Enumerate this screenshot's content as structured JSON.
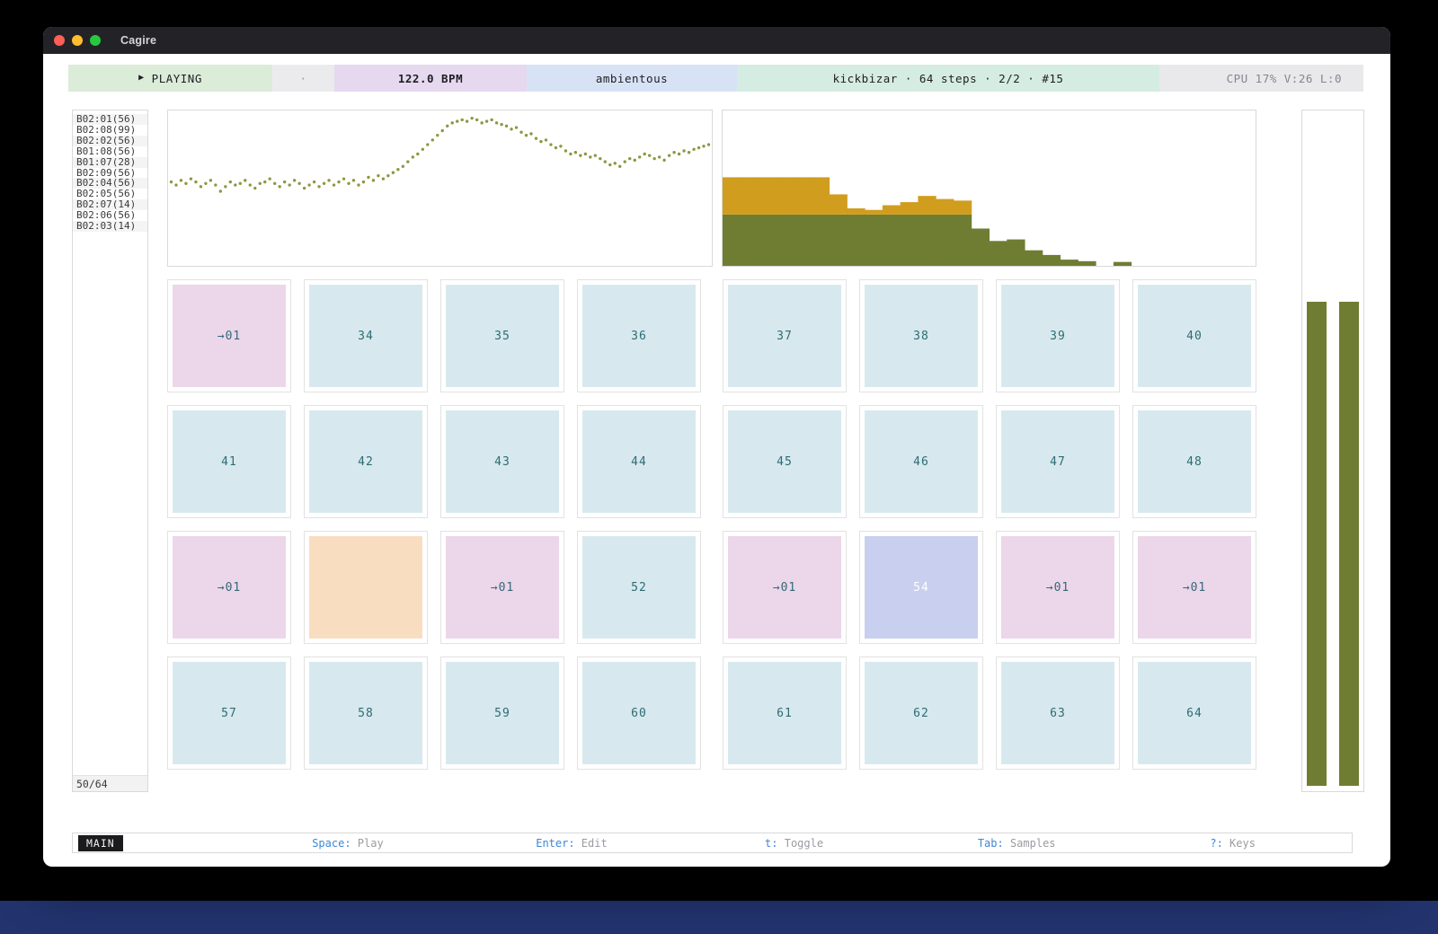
{
  "window": {
    "title": "Cagire"
  },
  "toolbar": {
    "transport_label": "PLAYING",
    "play_icon": "▶",
    "mid_dot": "·",
    "bpm": "122.0 BPM",
    "scene": "ambientous",
    "pattern_info": "kickbizar · 64 steps · 2/2 · #15",
    "stats": "CPU 17%  V:26  L:0"
  },
  "samples": {
    "items": [
      "B02:01(56)",
      "B02:08(99)",
      "B02:02(56)",
      "B01:08(56)",
      "B01:07(28)",
      "B02:09(56)",
      "B02:04(56)",
      "B02:05(56)",
      "B02:07(14)",
      "B02:06(56)",
      "B02:03(14)"
    ],
    "count": "50/64"
  },
  "grid": {
    "cells": [
      {
        "label": "→01",
        "variant": "pink"
      },
      {
        "label": "34",
        "variant": "blue"
      },
      {
        "label": "35",
        "variant": "blue"
      },
      {
        "label": "36",
        "variant": "blue"
      },
      {
        "label": "37",
        "variant": "blue"
      },
      {
        "label": "38",
        "variant": "blue"
      },
      {
        "label": "39",
        "variant": "blue"
      },
      {
        "label": "40",
        "variant": "blue"
      },
      {
        "label": "41",
        "variant": "blue"
      },
      {
        "label": "42",
        "variant": "blue"
      },
      {
        "label": "43",
        "variant": "blue"
      },
      {
        "label": "44",
        "variant": "blue"
      },
      {
        "label": "45",
        "variant": "blue"
      },
      {
        "label": "46",
        "variant": "blue"
      },
      {
        "label": "47",
        "variant": "blue"
      },
      {
        "label": "48",
        "variant": "blue"
      },
      {
        "label": "→01",
        "variant": "pink"
      },
      {
        "label": "",
        "variant": "orange"
      },
      {
        "label": "→01",
        "variant": "pink"
      },
      {
        "label": "52",
        "variant": "blue"
      },
      {
        "label": "→01",
        "variant": "pink"
      },
      {
        "label": "54",
        "variant": "lavender"
      },
      {
        "label": "→01",
        "variant": "pink"
      },
      {
        "label": "→01",
        "variant": "pink"
      },
      {
        "label": "57",
        "variant": "blue"
      },
      {
        "label": "58",
        "variant": "blue"
      },
      {
        "label": "59",
        "variant": "blue"
      },
      {
        "label": "60",
        "variant": "blue"
      },
      {
        "label": "61",
        "variant": "blue"
      },
      {
        "label": "62",
        "variant": "blue"
      },
      {
        "label": "63",
        "variant": "blue"
      },
      {
        "label": "64",
        "variant": "blue"
      }
    ]
  },
  "chart_data": [
    {
      "type": "scatter",
      "name": "waveform-dot-curve",
      "ylim": [
        0,
        100
      ],
      "note": "y in percent from panel top, points evenly spaced in x",
      "y_pct": [
        46,
        48,
        45,
        47,
        44,
        46,
        49,
        47,
        45,
        48,
        52,
        49,
        46,
        48,
        47,
        45,
        48,
        50,
        47,
        46,
        44,
        47,
        49,
        46,
        48,
        45,
        47,
        50,
        48,
        46,
        49,
        47,
        45,
        48,
        46,
        44,
        47,
        45,
        48,
        46,
        43,
        45,
        42,
        44,
        42,
        40,
        38,
        36,
        33,
        30,
        28,
        25,
        22,
        19,
        16,
        13,
        10,
        8,
        7,
        6,
        7,
        5,
        6,
        8,
        7,
        6,
        8,
        9,
        10,
        12,
        11,
        14,
        16,
        15,
        18,
        20,
        19,
        22,
        24,
        23,
        26,
        28,
        27,
        29,
        28,
        30,
        29,
        31,
        33,
        35,
        34,
        36,
        33,
        31,
        32,
        30,
        28,
        29,
        31,
        30,
        32,
        29,
        27,
        28,
        26,
        27,
        25,
        24,
        23,
        22
      ]
    },
    {
      "type": "bar",
      "name": "sample-histogram",
      "stacked": true,
      "unit": "pct_of_panel_height",
      "series": [
        {
          "name": "green",
          "values": [
            33,
            33,
            33,
            33,
            33,
            33,
            33,
            33,
            33,
            33,
            33,
            33,
            33,
            33,
            24,
            16,
            17,
            10,
            7,
            4,
            3,
            0,
            2.5,
            0,
            0,
            0,
            0,
            0,
            0,
            0
          ]
        },
        {
          "name": "gold",
          "values": [
            24,
            24,
            24,
            24,
            24,
            24,
            13,
            4,
            3,
            6,
            8,
            12,
            10,
            9,
            0,
            0,
            0,
            0,
            0,
            0,
            0,
            0,
            0,
            0,
            0,
            0,
            0,
            0,
            0,
            0
          ]
        }
      ]
    },
    {
      "type": "bar",
      "name": "level-meters",
      "values": [
        72,
        72
      ],
      "unit": "pct_fill_from_bottom"
    }
  ],
  "statusbar": {
    "mode": "MAIN",
    "hints": [
      {
        "key": "Space",
        "desc": "Play"
      },
      {
        "key": "Enter",
        "desc": "Edit"
      },
      {
        "key": "t",
        "desc": "Toggle"
      },
      {
        "key": "Tab",
        "desc": "Samples"
      },
      {
        "key": "?",
        "desc": "Keys"
      }
    ],
    "hint_positions_pct": [
      21.5,
      39.0,
      56.4,
      73.8,
      90.7
    ]
  },
  "colors": {
    "olive": "#6f7d33",
    "gold": "#d19d1f",
    "dot": "#8f9640",
    "meter": "#6f7d33"
  }
}
